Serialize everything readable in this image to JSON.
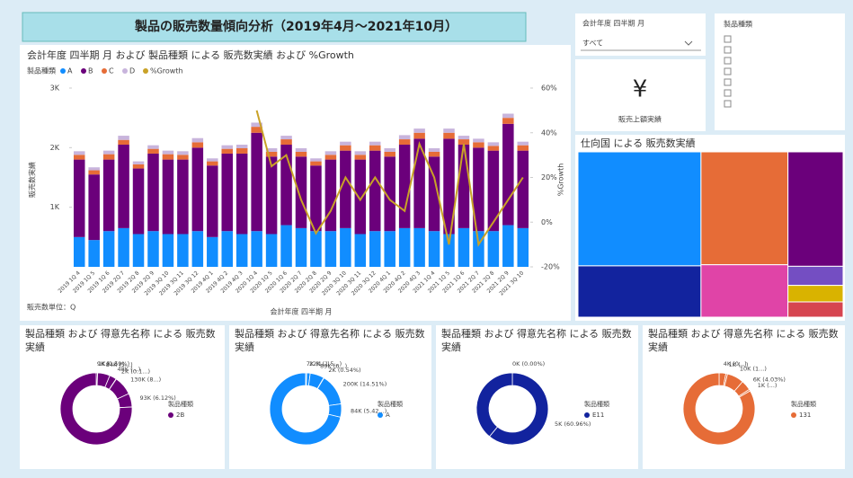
{
  "header": {
    "title": "製品の販売数量傾向分析（2019年4月～2021年10月）"
  },
  "slicers": [
    {
      "title": "会計年度 四半期 月",
      "selection": "すべて"
    },
    {
      "title": "製品種類"
    }
  ],
  "card": {
    "value": "¥",
    "label": "販売上額実績"
  },
  "chart_data": [
    {
      "type": "combo",
      "title": "会計年度 四半期 月 および 製品種類 による 販売数実績 および %Growth",
      "legend_title": "製品種類",
      "x_label": "会計年度 四半期 月",
      "y_label": "販売数実績",
      "y2_label": "%Growth",
      "note": "販売数単位：Q",
      "categories": [
        "2019 1Q 4",
        "2019 1Q 5",
        "2019 1Q 6",
        "2019 2Q 7",
        "2019 2Q 8",
        "2019 2Q 9",
        "2019 3Q 10",
        "2019 3Q 11",
        "2019 3Q 12",
        "2019 4Q 1",
        "2019 4Q 2",
        "2019 4Q 3",
        "2020 1Q 4",
        "2020 1Q 5",
        "2020 1Q 6",
        "2020 2Q 7",
        "2020 2Q 8",
        "2020 2Q 9",
        "2020 3Q 10",
        "2020 3Q 11",
        "2020 3Q 12",
        "2020 4Q 1",
        "2020 4Q 2",
        "2020 4Q 3",
        "2021 1Q 4",
        "2021 1Q 5",
        "2021 1Q 6",
        "2021 2Q 7",
        "2021 2Q 8",
        "2021 2Q 9",
        "2021 3Q 10"
      ],
      "ylim": [
        0,
        3000
      ],
      "yticks": [
        {
          "value": 1000,
          "label": "1K"
        },
        {
          "value": 2000,
          "label": "2K"
        },
        {
          "value": 3000,
          "label": "3K"
        }
      ],
      "y2lim": [
        -20,
        60
      ],
      "y2ticks": [
        {
          "value": -20,
          "label": "-20%"
        },
        {
          "value": 0,
          "label": "0%"
        },
        {
          "value": 20,
          "label": "20%"
        },
        {
          "value": 40,
          "label": "40%"
        },
        {
          "value": 60,
          "label": "60%"
        }
      ],
      "series": [
        {
          "name": "A",
          "color": "#118dff",
          "values": [
            500,
            450,
            600,
            650,
            550,
            600,
            550,
            550,
            600,
            500,
            600,
            550,
            600,
            550,
            700,
            650,
            600,
            600,
            650,
            550,
            600,
            600,
            650,
            650,
            600,
            550,
            650,
            600,
            600,
            700,
            650
          ]
        },
        {
          "name": "B",
          "color": "#6b007b",
          "values": [
            1300,
            1100,
            1200,
            1400,
            1100,
            1300,
            1250,
            1250,
            1400,
            1200,
            1300,
            1350,
            1650,
            1300,
            1350,
            1200,
            1100,
            1200,
            1300,
            1250,
            1350,
            1250,
            1400,
            1500,
            1250,
            1600,
            1400,
            1400,
            1350,
            1700,
            1300
          ]
        },
        {
          "name": "C",
          "color": "#e66c37",
          "values": [
            80,
            70,
            90,
            80,
            70,
            80,
            90,
            80,
            90,
            70,
            80,
            90,
            100,
            80,
            90,
            80,
            70,
            80,
            90,
            80,
            90,
            80,
            90,
            100,
            80,
            100,
            90,
            90,
            80,
            100,
            90
          ]
        },
        {
          "name": "D",
          "color": "#c8b4dc",
          "values": [
            60,
            50,
            60,
            70,
            50,
            60,
            60,
            60,
            70,
            50,
            60,
            60,
            70,
            60,
            60,
            60,
            50,
            60,
            60,
            60,
            60,
            60,
            70,
            70,
            60,
            70,
            60,
            60,
            60,
            70,
            60
          ]
        },
        {
          "name": "%Growth",
          "color": "#c9a227",
          "axis": "y2",
          "type": "line",
          "values": [
            null,
            null,
            null,
            null,
            null,
            null,
            null,
            null,
            null,
            null,
            null,
            null,
            50,
            25,
            30,
            10,
            -5,
            5,
            20,
            10,
            20,
            10,
            5,
            35,
            20,
            -10,
            35,
            -10,
            0,
            10,
            20
          ]
        }
      ]
    },
    {
      "type": "treemap",
      "title": "仕向国 による 販売数実績",
      "groups": [
        {
          "values": [
            2000,
            900
          ],
          "colors": [
            "#118dff",
            "#12239e"
          ]
        },
        {
          "values": [
            1400,
            650
          ],
          "colors": [
            "#e66c37",
            "#e044a7"
          ]
        },
        {
          "values": [
            900,
            150,
            130,
            120
          ],
          "colors": [
            "#6b007b",
            "#744ec2",
            "#d9b300",
            "#d64550"
          ]
        }
      ]
    },
    {
      "type": "donut",
      "title": "製品種類 および 得意先名称 による 販売数実績",
      "legend_title": "製品種類",
      "legend_item": "2B",
      "color": "#6b007b",
      "values": [
        9000,
        1000,
        84000,
        48000,
        2000,
        130000,
        93000,
        1150000
      ],
      "value_labels": [
        "9K (0.59%)",
        "1K (...)",
        "84K (5...)",
        "48K (...)",
        "2K (0.1...)",
        "130K (8...)",
        "93K (6.12%)",
        null
      ]
    },
    {
      "type": "donut",
      "title": "製品種類 および 得意先名称 による 販売数実績",
      "legend_title": "製品種類",
      "legend_item": "A",
      "color": "#118dff",
      "values": [
        7000,
        22000,
        89000,
        2000,
        200000,
        84000,
        1000000
      ],
      "value_labels": [
        "7K (1...)",
        "22K (1.5...)",
        "89K (6...)",
        "2K (0.54%)",
        "200K (14.51%)",
        "84K (5.42...)",
        null
      ]
    },
    {
      "type": "donut",
      "title": "製品種類 および 得意先名称 による 販売数実績",
      "legend_title": "製品種類",
      "legend_item": "E11",
      "color": "#12239e",
      "values": [
        0,
        5000,
        3200
      ],
      "value_labels": [
        "0K (0.00%)",
        "5K (60.96%)",
        null
      ]
    },
    {
      "type": "donut",
      "title": "製品種類 および 得意先名称 による 販売数実績",
      "legend_title": "製品種類",
      "legend_item": "131",
      "color": "#e66c37",
      "values": [
        4000,
        1000,
        10000,
        6000,
        1000,
        110000
      ],
      "value_labels": [
        "4K (0...)",
        "1K (...)",
        "10K (1...)",
        "6K (4.03%)",
        "1K (...)",
        null
      ]
    }
  ]
}
